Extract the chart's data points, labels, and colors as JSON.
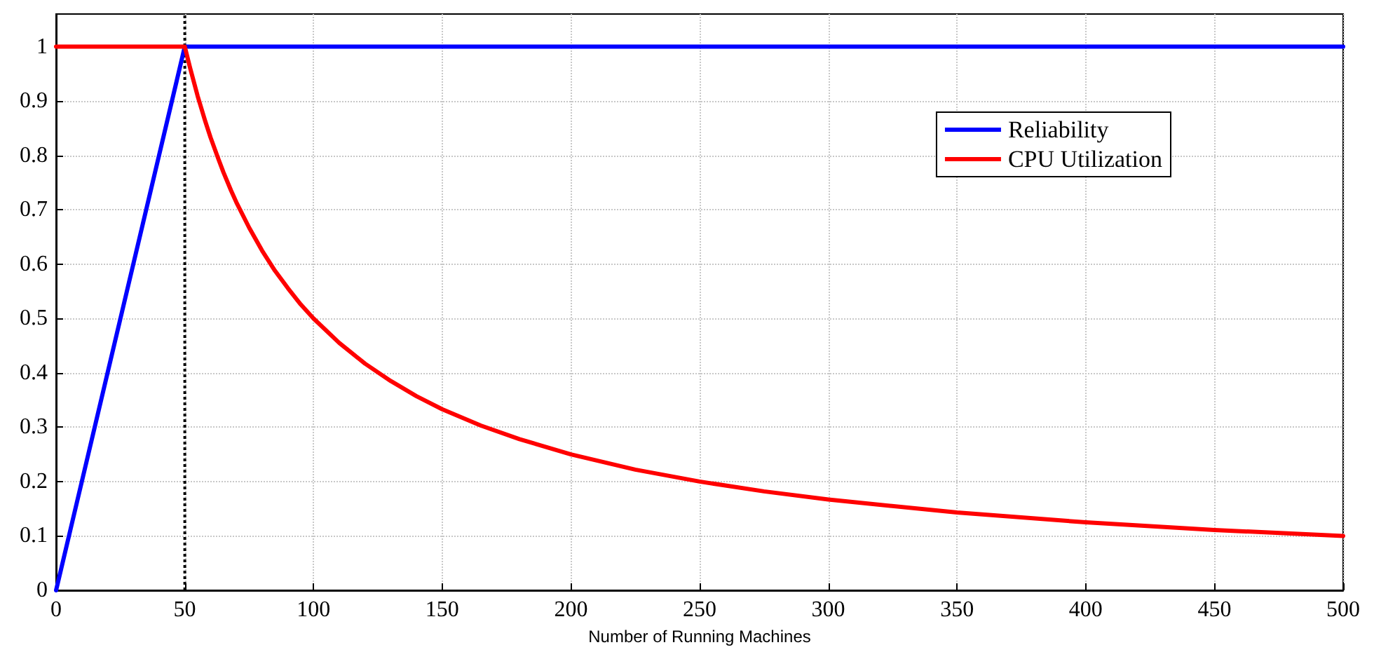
{
  "chart_data": {
    "type": "line",
    "xlabel": "Number of Running Machines",
    "xlim": [
      0,
      500
    ],
    "xticks": [
      0,
      50,
      100,
      150,
      200,
      250,
      300,
      350,
      400,
      450,
      500
    ],
    "ylim": [
      0,
      1.06
    ],
    "yticks": [
      0,
      0.1,
      0.2,
      0.3,
      0.4,
      0.5,
      0.6,
      0.7,
      0.8,
      0.9,
      1
    ],
    "grid": true,
    "legend": "top right",
    "marker": "none",
    "line_style": "solid",
    "series": [
      {
        "name": "Reliability",
        "color": "#0000ff",
        "x": [
          0,
          50,
          500
        ],
        "values": [
          0,
          1,
          1
        ]
      },
      {
        "name": "CPU Utilization",
        "color": "#ff0000",
        "x": [
          0,
          50,
          52,
          55,
          58,
          60,
          63,
          65,
          68,
          70,
          75,
          80,
          85,
          90,
          95,
          100,
          110,
          120,
          130,
          140,
          150,
          165,
          180,
          200,
          225,
          250,
          275,
          300,
          350,
          400,
          450,
          500
        ],
        "values": [
          1,
          1,
          0.962,
          0.909,
          0.862,
          0.833,
          0.794,
          0.769,
          0.735,
          0.714,
          0.667,
          0.625,
          0.588,
          0.556,
          0.526,
          0.5,
          0.455,
          0.417,
          0.385,
          0.357,
          0.333,
          0.303,
          0.278,
          0.25,
          0.222,
          0.2,
          0.182,
          0.167,
          0.143,
          0.125,
          0.111,
          0.1
        ]
      }
    ],
    "ref_lines": [
      {
        "axis": "x",
        "value": 50,
        "label": null,
        "color": "#000000",
        "line_style": "dotted"
      }
    ]
  }
}
